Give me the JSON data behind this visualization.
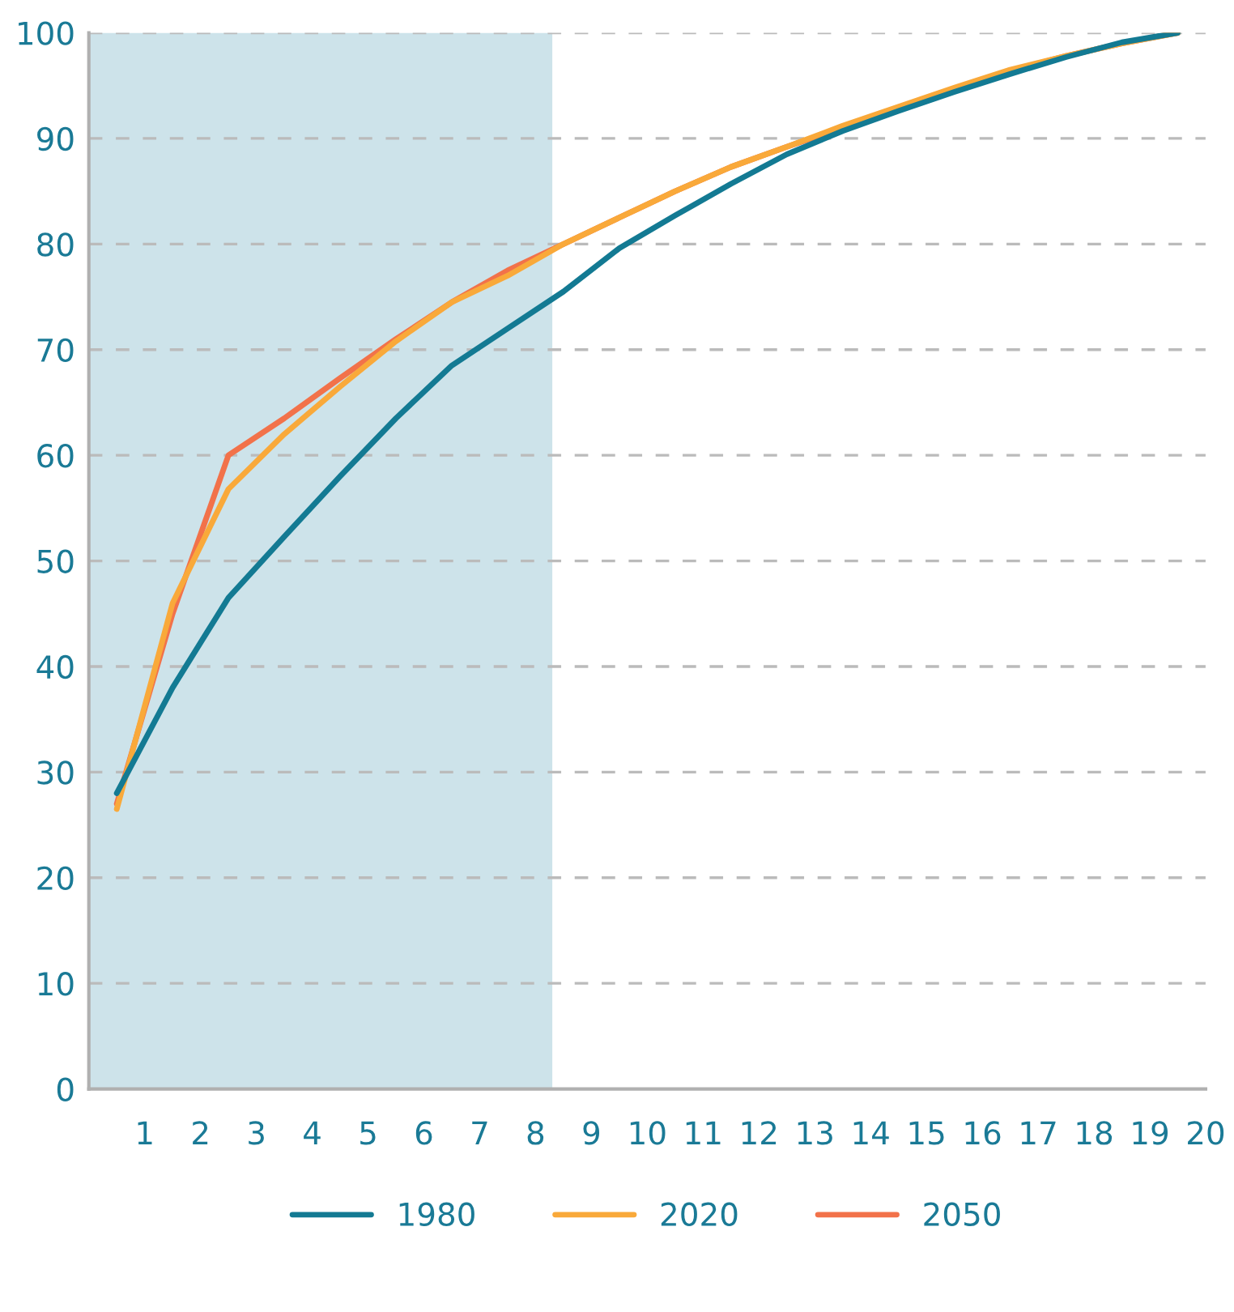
{
  "chart_data": {
    "type": "line",
    "x": [
      0.5,
      1.5,
      2.5,
      3.5,
      4.5,
      5.5,
      6.5,
      7.5,
      8.5,
      9.5,
      10.5,
      11.5,
      12.5,
      13.5,
      14.5,
      15.5,
      16.5,
      17.5,
      18.5,
      19.5
    ],
    "series": [
      {
        "name": "1980",
        "color": "#137a93",
        "values": [
          28,
          38,
          46.5,
          52.3,
          58,
          63.5,
          68.5,
          72,
          75.5,
          79.6,
          82.7,
          85.7,
          88.5,
          90.7,
          92.6,
          94.4,
          96.1,
          97.7,
          99.1,
          100
        ]
      },
      {
        "name": "2020",
        "color": "#f9a93a",
        "values": [
          26.5,
          46,
          56.8,
          62,
          66.5,
          70.8,
          74.5,
          77,
          80,
          82.5,
          85,
          87.3,
          89.2,
          91.2,
          93,
          94.8,
          96.5,
          97.8,
          99,
          100
        ]
      },
      {
        "name": "2050",
        "color": "#f2724a",
        "values": [
          27,
          45,
          60,
          63.5,
          67.3,
          71,
          74.5,
          77.5,
          80,
          82.5,
          85,
          87.3,
          89.2,
          91,
          92.9,
          94.7,
          96.4,
          97.8,
          99,
          100
        ]
      }
    ],
    "xlim": [
      0,
      20
    ],
    "xticks": [
      1,
      2,
      3,
      4,
      5,
      6,
      7,
      8,
      9,
      10,
      11,
      12,
      13,
      14,
      15,
      16,
      17,
      18,
      19,
      20
    ],
    "ylim": [
      0,
      100
    ],
    "yticks": [
      0,
      10,
      20,
      30,
      40,
      50,
      60,
      70,
      80,
      90,
      100
    ],
    "bands": [
      {
        "axis": "x",
        "from": 0,
        "to": 8.3,
        "color": "#cde3ea"
      }
    ],
    "grid": "y",
    "legend": "bottom",
    "marker": "none",
    "line_style": "solid"
  }
}
